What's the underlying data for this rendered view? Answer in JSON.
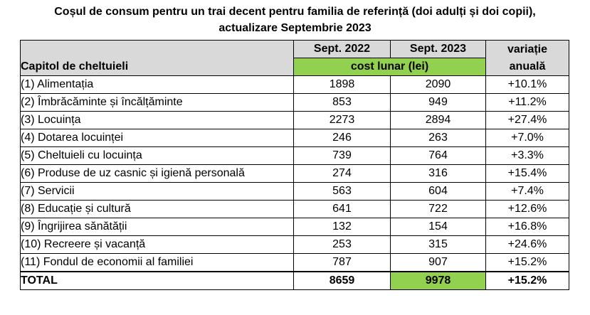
{
  "title": {
    "line1": "Coșul de consum pentru un trai decent pentru familia de referință (doi adulți și doi copii),",
    "line2": "actualizare Septembrie 2023"
  },
  "table": {
    "headers": {
      "chapter": "Capitol de cheltuieli",
      "year1": "Sept. 2022",
      "year2": "Sept. 2023",
      "cost": "cost lunar (lei)",
      "variation_line1": "variație",
      "variation_line2": "anuală"
    },
    "rows": [
      {
        "label": "(1) Alimentația",
        "y2022": "1898",
        "y2023": "2090",
        "variation": "+10.1%"
      },
      {
        "label": "(2) Îmbrăcăminte și încălțăminte",
        "y2022": "853",
        "y2023": "949",
        "variation": "+11.2%"
      },
      {
        "label": "(3) Locuința",
        "y2022": "2273",
        "y2023": "2894",
        "variation": "+27.4%"
      },
      {
        "label": "(4) Dotarea locuinței",
        "y2022": "246",
        "y2023": "263",
        "variation": "+7.0%"
      },
      {
        "label": "(5) Cheltuieli cu locuința",
        "y2022": "739",
        "y2023": "764",
        "variation": "+3.3%"
      },
      {
        "label": "(6) Produse de uz casnic și igienă personală",
        "y2022": "274",
        "y2023": "316",
        "variation": "+15.4%"
      },
      {
        "label": "(7) Servicii",
        "y2022": "563",
        "y2023": "604",
        "variation": "+7.4%"
      },
      {
        "label": "(8) Educație și cultură",
        "y2022": "641",
        "y2023": "722",
        "variation": "+12.6%"
      },
      {
        "label": "(9) Îngrijirea sănătății",
        "y2022": "132",
        "y2023": "154",
        "variation": "+16.8%"
      },
      {
        "label": "(10) Recreere și vacanță",
        "y2022": "253",
        "y2023": "315",
        "variation": "+24.6%"
      },
      {
        "label": "(11) Fondul de economii al familiei",
        "y2022": "787",
        "y2023": "907",
        "variation": "+15.2%"
      }
    ],
    "total": {
      "label": "TOTAL",
      "y2022": "8659",
      "y2023": "9978",
      "variation": "+15.2%"
    }
  },
  "colors": {
    "header_gray": "#d9d9d9",
    "highlight_green": "#92d050"
  }
}
